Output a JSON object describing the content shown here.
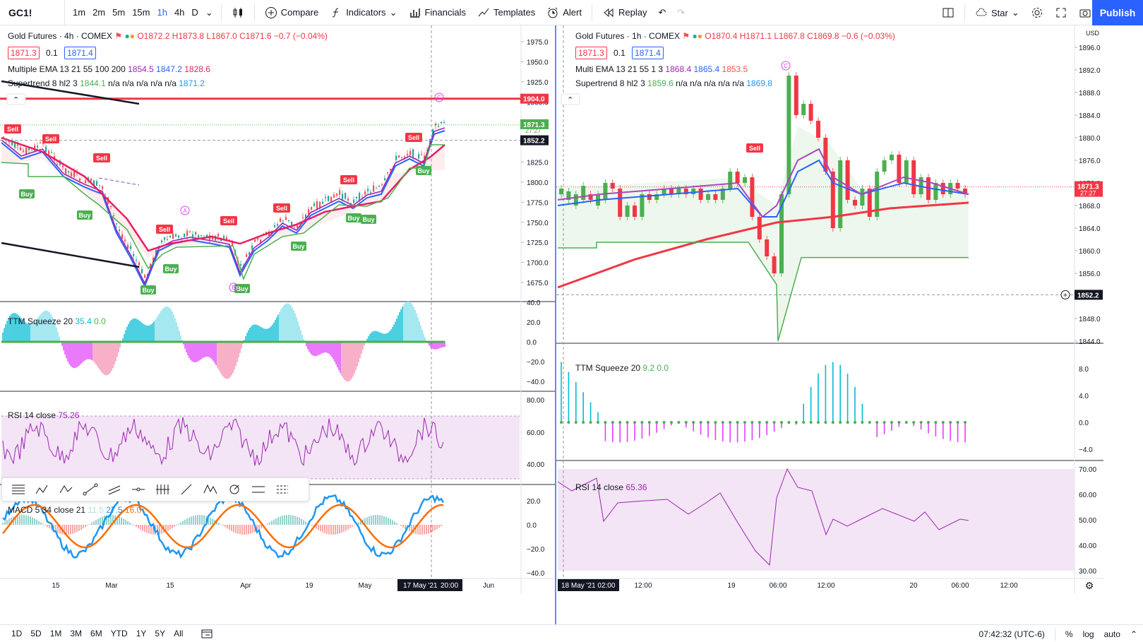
{
  "toolbar": {
    "symbol": "GC1!",
    "intervals": [
      "1m",
      "2m",
      "5m",
      "15m",
      "1h",
      "4h",
      "D"
    ],
    "active_interval": "1h",
    "compare": "Compare",
    "indicators": "Indicators",
    "financials": "Financials",
    "templates": "Templates",
    "alert": "Alert",
    "replay": "Replay",
    "star": "Star",
    "publish": "Publish"
  },
  "left": {
    "title": "Gold Futures · 4h · COMEX",
    "ohlc": "O1872.2 H1873.8 L1867.0 C1871.6 −0.7 (−0.04%)",
    "bid": "1871.3",
    "spread": "0.1",
    "ask": "1871.4",
    "ema_label": "Multiple EMA 13 21 55 100 200",
    "ema_v1": "1854.5",
    "ema_v2": "1847.2",
    "ema_v3": "1828.6",
    "st_label": "Supertrend 8 hl2 3",
    "st_v1": "1844.1",
    "st_na": "n/a n/a n/a n/a n/a",
    "st_v2": "1871.2",
    "ttm_label": "TTM Squeeze 20",
    "ttm_v1": "35.4",
    "ttm_v2": "0.0",
    "rsi_label": "RSI 14 close",
    "rsi_v": "75.26",
    "macd_label": "MACD 5 34 close 21",
    "macd_v1": "11.5",
    "macd_v2": "27.5",
    "macd_v3": "16.0",
    "price_ticks": [
      "1975.0",
      "1950.0",
      "1925.0",
      "1900.0",
      "1875.0",
      "1850.0",
      "1825.0",
      "1800.0",
      "1775.0",
      "1750.0",
      "1725.0",
      "1700.0",
      "1675.0"
    ],
    "ttm_ticks": [
      "40.0",
      "20.0",
      "0.0",
      "−20.0",
      "−40.0"
    ],
    "rsi_ticks": [
      "80.00",
      "60.00",
      "40.00"
    ],
    "macd_ticks": [
      "20.0",
      "0.0",
      "−20.0",
      "−40.0"
    ],
    "price_labels": [
      "1904.0",
      "1871.3",
      "27:27",
      "1852.2"
    ],
    "time_ticks": [
      "15",
      "Mar",
      "15",
      "Apr",
      "19",
      "May",
      "Jun"
    ],
    "time_cursor_date": "17 May '21",
    "time_cursor_time": "20:00",
    "sells": [
      "Sell",
      "Sell",
      "Sell",
      "Sell",
      "Sell",
      "Sell",
      "Sell",
      "Sell"
    ],
    "buys": [
      "Buy",
      "Buy",
      "Buy",
      "Buy",
      "Buy",
      "Buy",
      "Buy",
      "Buy"
    ],
    "markers": [
      "A",
      "B",
      "C"
    ]
  },
  "right": {
    "title": "Gold Futures · 1h · COMEX",
    "ohlc": "O1870.4 H1871.1 L1867.8 C1869.8 −0.6 (−0.03%)",
    "bid": "1871.3",
    "spread": "0.1",
    "ask": "1871.4",
    "ema_label": "Multi EMA 13 21 55 1 3",
    "ema_v1": "1868.4",
    "ema_v2": "1865.4",
    "ema_v3": "1853.5",
    "st_label": "Supertrend 8 hl2 3",
    "st_v1": "1859.6",
    "st_na": "n/a n/a n/a n/a n/a",
    "st_v2": "1869.8",
    "ttm_label": "TTM Squeeze 20",
    "ttm_v1": "9.2",
    "ttm_v2": "0.0",
    "rsi_label": "RSI 14 close",
    "rsi_v": "65.36",
    "currency": "USD",
    "price_ticks": [
      "1896.0",
      "1892.0",
      "1888.0",
      "1884.0",
      "1880.0",
      "1876.0",
      "1872.0",
      "1868.0",
      "1864.0",
      "1860.0",
      "1856.0",
      "1852.0",
      "1848.0",
      "1844.0"
    ],
    "ttm_ticks": [
      "8.0",
      "4.0",
      "0.0",
      "−4.0"
    ],
    "rsi_ticks": [
      "70.00",
      "60.00",
      "50.00",
      "40.00",
      "30.00"
    ],
    "price_labels": [
      "1871.3",
      "27:27",
      "1852.2"
    ],
    "time_ticks": [
      "12:00",
      "19",
      "06:00",
      "12:00",
      "20",
      "06:00",
      "12:00"
    ],
    "time_cursor": "18 May '21   02:00",
    "sell": "Sell",
    "marker": "C"
  },
  "bottombar": {
    "ranges": [
      "1D",
      "5D",
      "1M",
      "3M",
      "6M",
      "YTD",
      "1Y",
      "5Y",
      "All"
    ],
    "clock": "07:42:32 (UTC-6)",
    "pct": "%",
    "log": "log",
    "auto": "auto"
  },
  "colors": {
    "up": "#4caf50",
    "down": "#f23645",
    "accent": "#2962ff",
    "rsi_bg": "#f3e5f5"
  }
}
